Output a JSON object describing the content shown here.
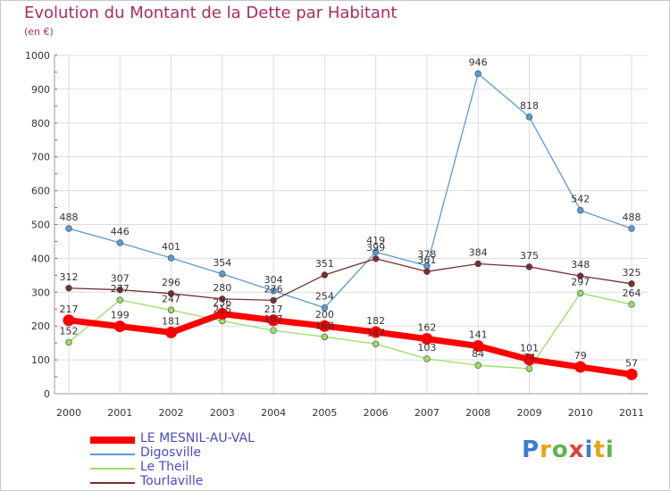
{
  "title": "Evolution du Montant de la Dette par Habitant",
  "subtitle": "(en €)",
  "logo": {
    "text": "Proxiti",
    "letters": [
      {
        "ch": "P",
        "color": "#3a7bd5"
      },
      {
        "ch": "r",
        "color": "#e8a317"
      },
      {
        "ch": "o",
        "color": "#5fb34d"
      },
      {
        "ch": "x",
        "color": "#e0403a"
      },
      {
        "ch": "i",
        "color": "#3a7bd5"
      },
      {
        "ch": "t",
        "color": "#e8a317"
      },
      {
        "ch": "i",
        "color": "#5fb34d"
      }
    ]
  },
  "chart_data": {
    "type": "line",
    "x": [
      "2000",
      "2001",
      "2002",
      "2003",
      "2004",
      "2005",
      "2006",
      "2007",
      "2008",
      "2009",
      "2010",
      "2011"
    ],
    "ylim": [
      0,
      1000
    ],
    "yticks": [
      "0",
      "100",
      "200",
      "300",
      "400",
      "500",
      "600",
      "700",
      "800",
      "900",
      "1000"
    ],
    "grid": true,
    "legend_position": "bottom-left",
    "series": [
      {
        "name": "LE MESNIL-AU-VAL",
        "color": "#ff0000",
        "values": [
          217,
          199,
          181,
          236,
          217,
          200,
          182,
          162,
          141,
          101,
          79,
          57
        ],
        "labels": [
          "217",
          "199",
          "181",
          "236",
          "217",
          "200",
          "182",
          "162",
          "141",
          "101",
          "79",
          "57"
        ]
      },
      {
        "name": "Digosville",
        "color": "#5b9bd5",
        "values": [
          488,
          446,
          401,
          354,
          304,
          254,
          419,
          378,
          946,
          818,
          542,
          488
        ],
        "labels": [
          "488",
          "446",
          "401",
          "354",
          "304",
          "254",
          "419",
          "378",
          "946",
          "818",
          "542",
          "488"
        ]
      },
      {
        "name": "Le Theil",
        "color": "#99dd66",
        "values": [
          152,
          277,
          247,
          215,
          187,
          168,
          147,
          103,
          84,
          74,
          297,
          264
        ],
        "labels": [
          "152",
          "277",
          "247",
          "215",
          "187",
          "168",
          "147",
          "103",
          "84",
          "74",
          "297",
          "264"
        ]
      },
      {
        "name": "Tourlaville",
        "color": "#7a2e2e",
        "values": [
          312,
          307,
          296,
          280,
          276,
          351,
          399,
          361,
          384,
          375,
          348,
          325
        ],
        "labels": [
          "312",
          "307",
          "296",
          "280",
          "276",
          "351",
          "399",
          "361",
          "384",
          "375",
          "348",
          "325"
        ]
      }
    ]
  }
}
